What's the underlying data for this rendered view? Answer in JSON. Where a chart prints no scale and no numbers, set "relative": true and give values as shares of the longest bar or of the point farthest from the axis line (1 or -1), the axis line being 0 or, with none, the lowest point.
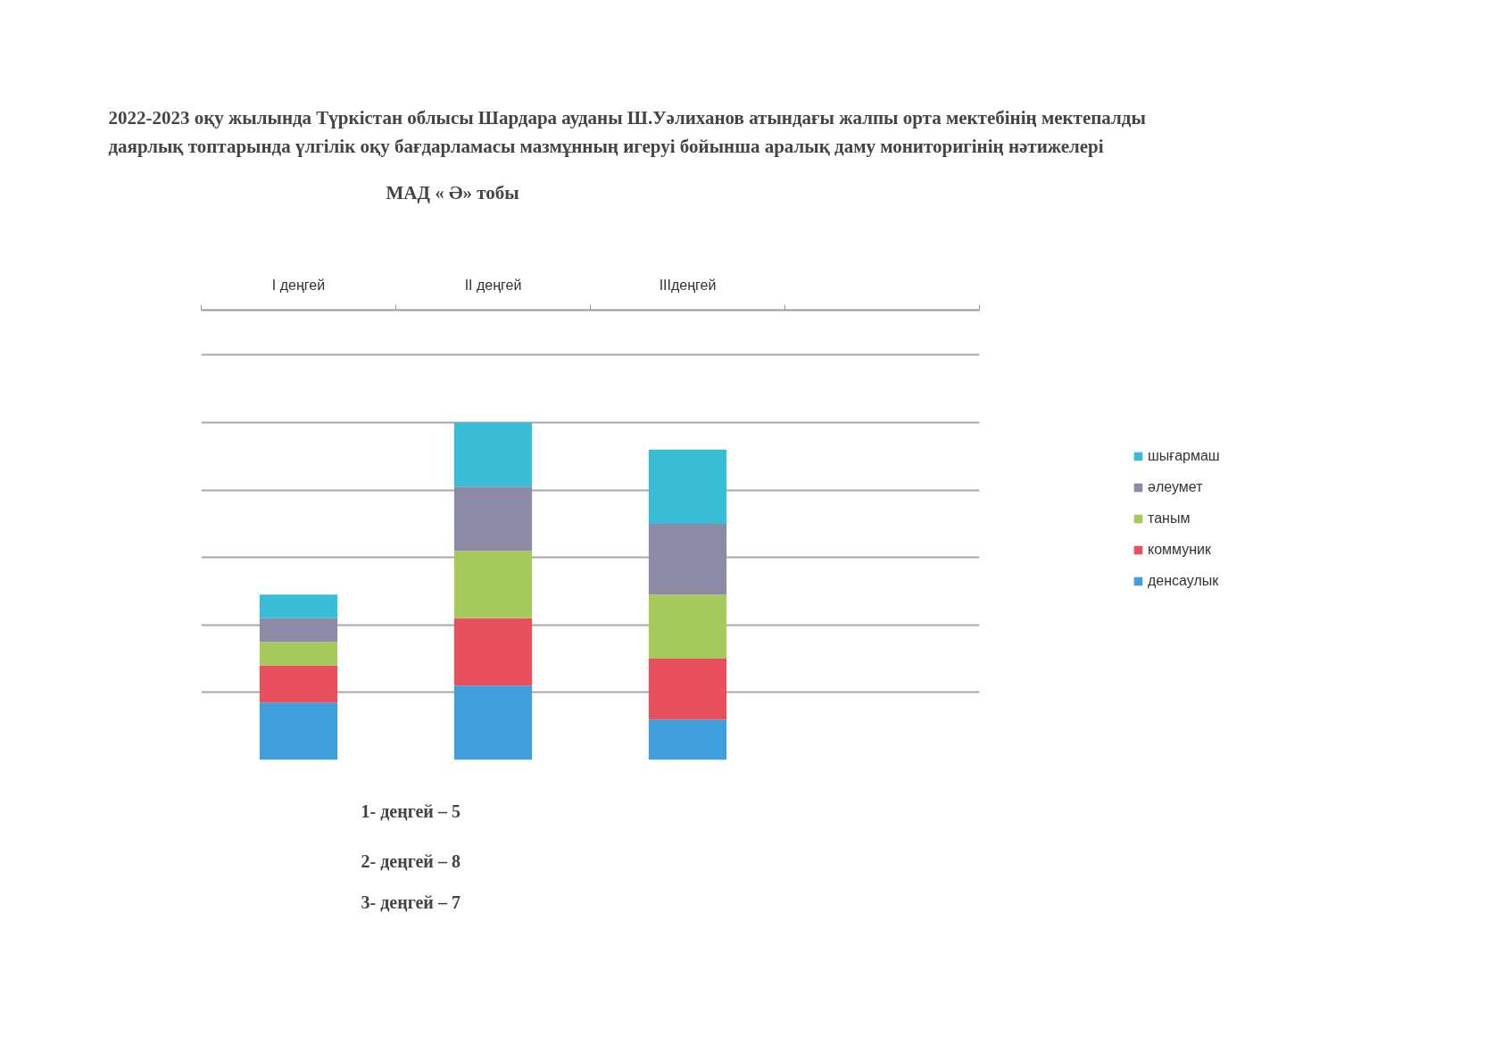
{
  "chart_data": {
    "type": "bar",
    "title": "2022-2023 оқу жылында Түркістан облысы Шардара ауданы Ш.Уәлиханов атындағы жалпы орта мектебінің мектепалды даярлық топтарында үлгілік оқу бағдарламасы мазмұнның игеруі бойынша аралық даму мониторигінің нәтижелері",
    "subtitle": "МАД « Ә» тобы",
    "categories": [
      "I деңгей",
      "II деңгей",
      "IIIдеңгей",
      null
    ],
    "stacked": true,
    "relative": true,
    "series": [
      {
        "name": "денсаулык",
        "color": "#3f9fdc",
        "values": [
          0.17,
          0.22,
          0.12,
          null
        ]
      },
      {
        "name": "коммуник",
        "color": "#e8505e",
        "values": [
          0.11,
          0.2,
          0.18,
          null
        ]
      },
      {
        "name": "таным",
        "color": "#a5c95a",
        "values": [
          0.07,
          0.2,
          0.19,
          null
        ]
      },
      {
        "name": "әлеумет",
        "color": "#8c8aa6",
        "values": [
          0.07,
          0.19,
          0.21,
          null
        ]
      },
      {
        "name": "шығармаш",
        "color": "#37bdd6",
        "values": [
          0.07,
          0.19,
          0.22,
          null
        ]
      }
    ],
    "legend": "right",
    "grid": "y",
    "annotations": [
      "1- деңгей – 5",
      "2- деңгей – 8",
      "3- деңгей – 7"
    ]
  }
}
